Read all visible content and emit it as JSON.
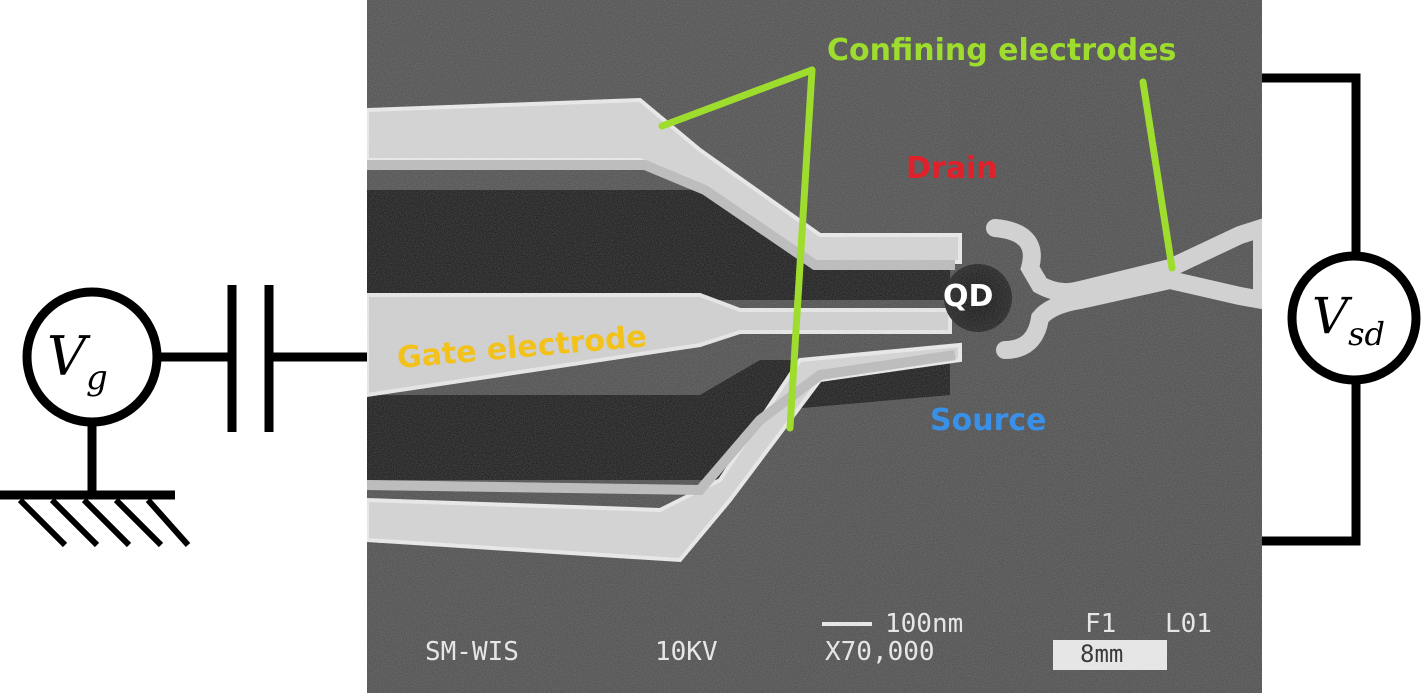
{
  "circuit": {
    "gate_source": {
      "symbol": "V",
      "subscript": "g"
    },
    "sd_source": {
      "symbol": "V",
      "subscript": "sd"
    }
  },
  "micrograph": {
    "labels": {
      "confining": "Confining electrodes",
      "drain": "Drain",
      "qd": "QD",
      "gate": "Gate electrode",
      "source": "Source"
    },
    "scalebar": {
      "length": "100nm",
      "frame": "F1",
      "line": "L01",
      "instrument": "SM-WIS",
      "voltage": "10KV",
      "magnification": "X70,000",
      "working_distance": "8mm"
    }
  },
  "colors": {
    "confining": "#9edc2e",
    "drain": "#e0202a",
    "gate": "#f2c21a",
    "source": "#3a8fe6",
    "qd": "#ffffff",
    "wire": "#000000"
  }
}
